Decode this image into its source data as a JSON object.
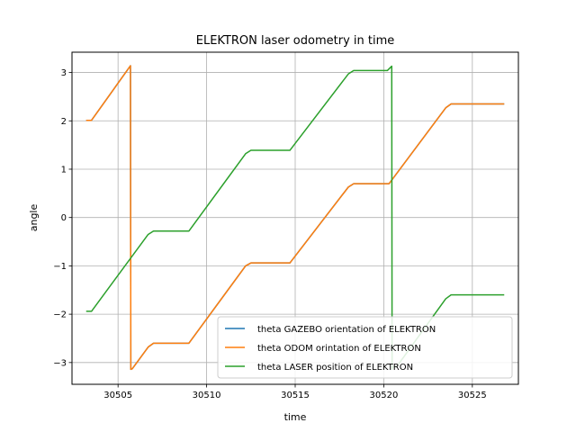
{
  "chart_data": {
    "type": "line",
    "title": "ELEKTRON laser odometry in time",
    "xlabel": "time",
    "ylabel": "angle",
    "xlim": [
      30502.4,
      30527.6
    ],
    "ylim": [
      -3.45,
      3.42
    ],
    "xticks": [
      30505,
      30510,
      30515,
      30520,
      30525
    ],
    "yticks": [
      -3,
      -2,
      -1,
      0,
      1,
      2,
      3
    ],
    "xtick_labels": [
      "30505",
      "30510",
      "30515",
      "30520",
      "30525"
    ],
    "ytick_labels": [
      "−3",
      "−2",
      "−1",
      "0",
      "1",
      "2",
      "3"
    ],
    "grid": true,
    "legend_position": "lower-right",
    "series": [
      {
        "name": "theta GAZEBO orientation of ELEKTRON",
        "color": "#1f77b4",
        "x": [
          30503.2,
          30503.5,
          30505.7,
          30505.72,
          30505.8,
          30506.7,
          30507.0,
          30509.0,
          30512.2,
          30512.5,
          30514.7,
          30518.0,
          30518.3,
          30520.3,
          30523.5,
          30523.8,
          30526.8
        ],
        "y": [
          2.01,
          2.01,
          3.14,
          -3.14,
          -3.13,
          -2.68,
          -2.6,
          -2.6,
          -1.0,
          -0.94,
          -0.94,
          0.63,
          0.7,
          0.7,
          2.27,
          2.35,
          2.35
        ]
      },
      {
        "name": "theta ODOM orintation of ELEKTRON",
        "color": "#ff7f0e",
        "x": [
          30503.2,
          30503.5,
          30505.7,
          30505.72,
          30505.8,
          30506.7,
          30507.0,
          30509.0,
          30512.2,
          30512.5,
          30514.7,
          30518.0,
          30518.3,
          30520.3,
          30523.5,
          30523.8,
          30526.8
        ],
        "y": [
          2.01,
          2.01,
          3.14,
          -3.14,
          -3.13,
          -2.68,
          -2.6,
          -2.6,
          -1.0,
          -0.94,
          -0.94,
          0.63,
          0.7,
          0.7,
          2.27,
          2.35,
          2.35
        ]
      },
      {
        "name": "theta LASER position of ELEKTRON",
        "color": "#2ca02c",
        "x": [
          30503.2,
          30503.5,
          30506.7,
          30507.0,
          30509.0,
          30512.2,
          30512.5,
          30514.7,
          30518.0,
          30518.3,
          30520.2,
          30520.45,
          30520.47,
          30520.5,
          30520.8,
          30523.5,
          30523.8,
          30526.8
        ],
        "y": [
          -1.94,
          -1.94,
          -0.35,
          -0.28,
          -0.28,
          1.32,
          1.39,
          1.39,
          2.97,
          3.04,
          3.04,
          3.13,
          -3.14,
          -3.1,
          -3.05,
          -1.68,
          -1.6,
          -1.6
        ]
      }
    ]
  }
}
